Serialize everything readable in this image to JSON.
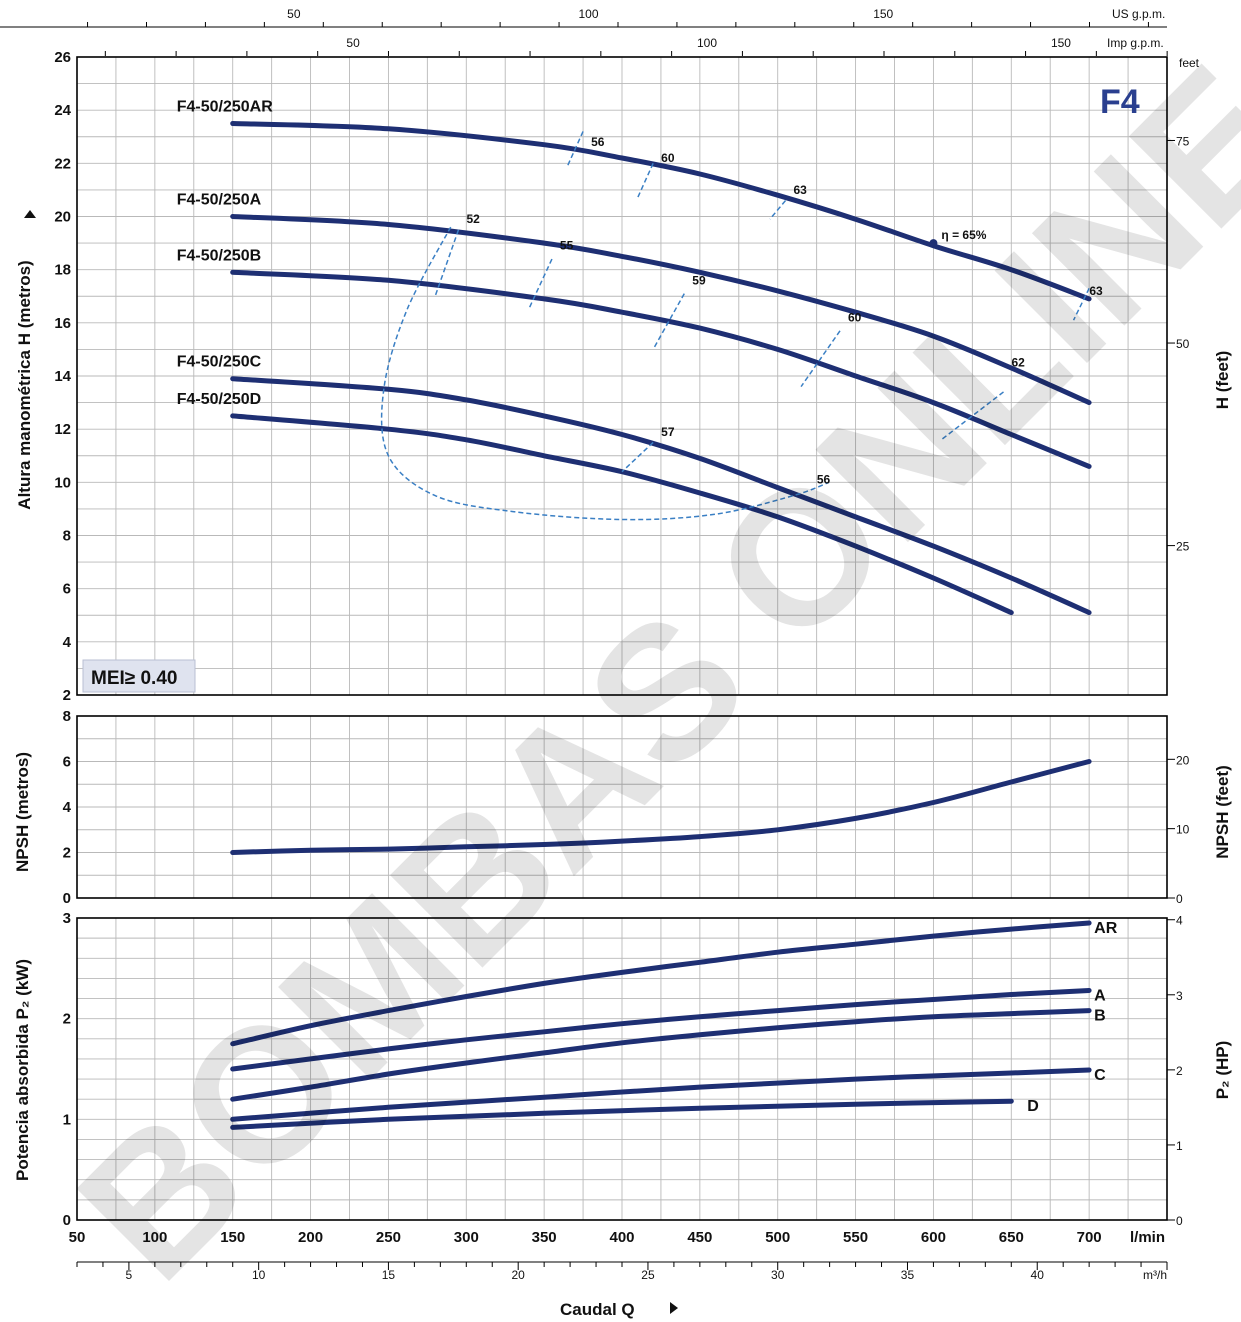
{
  "chart_data": [
    {
      "type": "line",
      "name": "head",
      "ylabel": "Altura manométrica H  (metros)",
      "y2label": "H  (feet)",
      "y2_unit": "feet",
      "ylim": [
        2,
        26
      ],
      "yticks": [
        2,
        4,
        6,
        8,
        10,
        12,
        14,
        16,
        18,
        20,
        22,
        24,
        26
      ],
      "y2ticks": [
        25,
        50,
        75
      ],
      "model": "F4",
      "badge": "MEI≥ 0.40",
      "series": [
        {
          "name": "F4-50/250AR",
          "x": [
            150,
            250,
            350,
            400,
            450,
            500,
            550,
            600,
            650,
            700
          ],
          "y": [
            23.5,
            23.3,
            22.7,
            22.2,
            21.6,
            20.8,
            19.9,
            18.9,
            18.0,
            16.9
          ]
        },
        {
          "name": "F4-50/250A",
          "x": [
            150,
            250,
            350,
            400,
            450,
            500,
            550,
            600,
            650,
            700
          ],
          "y": [
            20.0,
            19.7,
            19.0,
            18.5,
            17.9,
            17.2,
            16.4,
            15.5,
            14.3,
            13.0
          ]
        },
        {
          "name": "F4-50/250B",
          "x": [
            150,
            250,
            350,
            400,
            450,
            500,
            550,
            600,
            650,
            700
          ],
          "y": [
            17.9,
            17.6,
            16.9,
            16.4,
            15.8,
            15.0,
            14.0,
            13.0,
            11.8,
            10.6
          ]
        },
        {
          "name": "F4-50/250C",
          "x": [
            150,
            250,
            300,
            350,
            400,
            450,
            500,
            550,
            600,
            650,
            700
          ],
          "y": [
            13.9,
            13.5,
            13.1,
            12.5,
            11.8,
            10.9,
            9.8,
            8.7,
            7.6,
            6.4,
            5.1
          ]
        },
        {
          "name": "F4-50/250D",
          "x": [
            150,
            250,
            300,
            350,
            400,
            450,
            500,
            550,
            600,
            650
          ],
          "y": [
            12.5,
            12.0,
            11.6,
            11.0,
            10.4,
            9.6,
            8.7,
            7.6,
            6.4,
            5.1
          ]
        }
      ],
      "efficiency": [
        {
          "label": "56",
          "x": 375,
          "y": 22.5
        },
        {
          "label": "60",
          "x": 420,
          "y": 21.9
        },
        {
          "label": "63",
          "x": 505,
          "y": 20.7
        },
        {
          "label": "η = 65%",
          "x": 600,
          "y": 19.0
        },
        {
          "label": "63",
          "x": 695,
          "y": 16.9
        },
        {
          "label": "52",
          "x": 295,
          "y": 19.6
        },
        {
          "label": "55",
          "x": 355,
          "y": 18.6
        },
        {
          "label": "59",
          "x": 440,
          "y": 17.3
        },
        {
          "label": "60",
          "x": 540,
          "y": 15.9
        },
        {
          "label": "62",
          "x": 645,
          "y": 14.2
        },
        {
          "label": "57",
          "x": 420,
          "y": 11.6
        },
        {
          "label": "56",
          "x": 520,
          "y": 9.8
        }
      ]
    },
    {
      "type": "line",
      "name": "npsh",
      "ylabel": "NPSH  (metros)",
      "y2label": "NPSH  (feet)",
      "ylim": [
        0,
        8
      ],
      "yticks": [
        0,
        2,
        4,
        6,
        8
      ],
      "y2ticks": [
        0,
        10,
        20
      ],
      "series": [
        {
          "x": [
            150,
            200,
            250,
            300,
            350,
            400,
            450,
            500,
            550,
            600,
            650,
            700
          ],
          "y": [
            2.0,
            2.1,
            2.15,
            2.25,
            2.35,
            2.5,
            2.7,
            3.0,
            3.5,
            4.2,
            5.1,
            6.0
          ]
        }
      ]
    },
    {
      "type": "line",
      "name": "power",
      "ylabel": "Potencia absorbida  P₂  (kW)",
      "y2label": "P₂  (HP)",
      "ylim": [
        0,
        3
      ],
      "yticks": [
        0,
        1,
        2,
        3
      ],
      "y2ticks": [
        0,
        1,
        2,
        3,
        4
      ],
      "series": [
        {
          "name": "AR",
          "x": [
            150,
            200,
            250,
            300,
            350,
            400,
            450,
            500,
            550,
            600,
            650,
            700
          ],
          "y": [
            1.75,
            1.93,
            2.08,
            2.22,
            2.35,
            2.46,
            2.56,
            2.66,
            2.74,
            2.82,
            2.89,
            2.95
          ]
        },
        {
          "name": "A",
          "x": [
            150,
            200,
            250,
            300,
            350,
            400,
            450,
            500,
            550,
            600,
            650,
            700
          ],
          "y": [
            1.5,
            1.6,
            1.7,
            1.79,
            1.87,
            1.95,
            2.02,
            2.08,
            2.14,
            2.19,
            2.24,
            2.28
          ]
        },
        {
          "name": "B",
          "x": [
            150,
            200,
            250,
            300,
            350,
            400,
            450,
            500,
            550,
            600,
            650,
            700
          ],
          "y": [
            1.2,
            1.32,
            1.45,
            1.56,
            1.66,
            1.76,
            1.84,
            1.91,
            1.97,
            2.02,
            2.05,
            2.08
          ]
        },
        {
          "name": "C",
          "x": [
            150,
            250,
            350,
            450,
            550,
            650,
            700
          ],
          "y": [
            1.0,
            1.12,
            1.22,
            1.32,
            1.4,
            1.46,
            1.49
          ]
        },
        {
          "name": "D",
          "x": [
            150,
            250,
            350,
            450,
            550,
            650
          ],
          "y": [
            0.92,
            1.0,
            1.06,
            1.11,
            1.15,
            1.18
          ]
        }
      ]
    }
  ],
  "x_axis": {
    "unit": "l/min",
    "xlim": [
      50,
      750
    ],
    "ticks": [
      50,
      100,
      150,
      200,
      250,
      300,
      350,
      400,
      450,
      500,
      550,
      600,
      650,
      700
    ],
    "m3h_unit": "m³/h",
    "m3h_ticks": [
      5,
      10,
      15,
      20,
      25,
      30,
      35,
      40
    ],
    "title": "Caudal Q",
    "us_unit": "US g.p.m.",
    "us_ticks": [
      50,
      100,
      150
    ],
    "imp_unit": "Imp g.p.m.",
    "imp_ticks": [
      50,
      100,
      150
    ]
  },
  "watermark": "BOMBAS ONLINE"
}
